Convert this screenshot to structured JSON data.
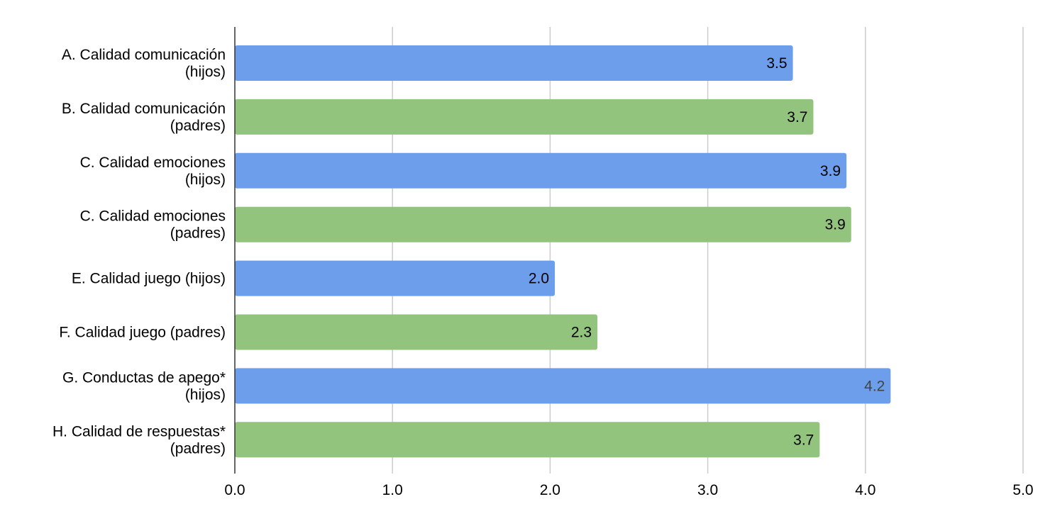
{
  "chart_data": {
    "type": "bar",
    "orientation": "horizontal",
    "title": "",
    "xlabel": "",
    "ylabel": "",
    "xlim": [
      0,
      5
    ],
    "grid": true,
    "legend": "none",
    "colors": {
      "blue": "#6d9eeb",
      "green": "#93c47d",
      "gridline": "#cccccc",
      "axis": "#333333",
      "label_default": "#000000",
      "label_muted": "#444444"
    },
    "x_ticks": [
      "0.0",
      "1.0",
      "2.0",
      "3.0",
      "4.0",
      "5.0"
    ],
    "bars": [
      {
        "lines": [
          "A. Calidad comunicación",
          "(hijos)"
        ],
        "value": 3.54,
        "value_label": "3.5",
        "color": "#6d9eeb",
        "label_color": "#000000"
      },
      {
        "lines": [
          "B. Calidad comunicación",
          "(padres)"
        ],
        "value": 3.67,
        "value_label": "3.7",
        "color": "#93c47d",
        "label_color": "#000000"
      },
      {
        "lines": [
          "C. Calidad emociones",
          "(hijos)"
        ],
        "value": 3.88,
        "value_label": "3.9",
        "color": "#6d9eeb",
        "label_color": "#000000"
      },
      {
        "lines": [
          "C. Calidad emociones",
          "(padres)"
        ],
        "value": 3.91,
        "value_label": "3.9",
        "color": "#93c47d",
        "label_color": "#000000"
      },
      {
        "lines": [
          "E. Calidad juego (hijos)"
        ],
        "value": 2.03,
        "value_label": "2.0",
        "color": "#6d9eeb",
        "label_color": "#000000"
      },
      {
        "lines": [
          "F. Calidad juego (padres)"
        ],
        "value": 2.3,
        "value_label": "2.3",
        "color": "#93c47d",
        "label_color": "#000000"
      },
      {
        "lines": [
          "G. Conductas de apego*",
          "(hijos)"
        ],
        "value": 4.16,
        "value_label": "4.2",
        "color": "#6d9eeb",
        "label_color": "#444444"
      },
      {
        "lines": [
          "H. Calidad de respuestas*",
          "(padres)"
        ],
        "value": 3.71,
        "value_label": "3.7",
        "color": "#93c47d",
        "label_color": "#000000"
      }
    ]
  }
}
